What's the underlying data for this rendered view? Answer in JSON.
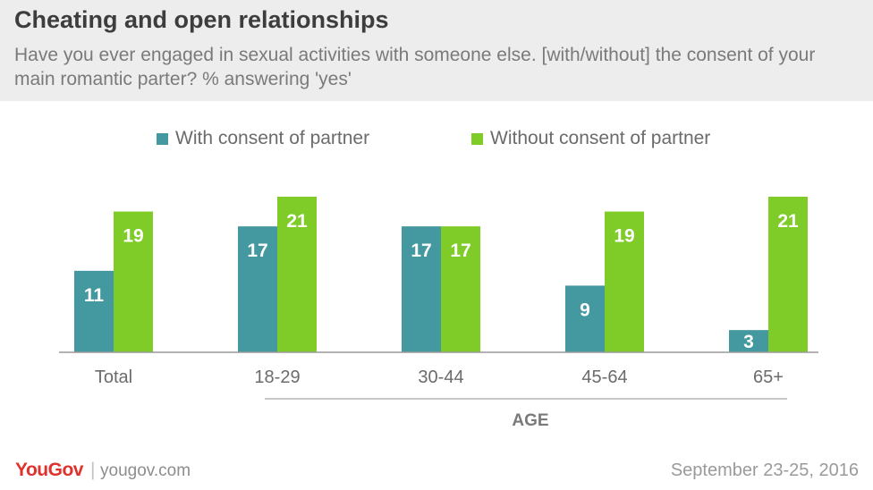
{
  "header": {
    "title": "Cheating and open relationships",
    "subtitle": "Have you ever engaged in sexual activities with someone else. [with/without] the consent of your main romantic parter? % answering 'yes'"
  },
  "colors": {
    "with": "#43999f",
    "without": "#7fcc28",
    "axis": "#9a9a9a",
    "text": "#6b6b6b"
  },
  "chart_data": {
    "type": "bar",
    "categories": [
      "Total",
      "18-29",
      "30-44",
      "45-64",
      "65+"
    ],
    "series": [
      {
        "name": "With consent of partner",
        "values": [
          11,
          17,
          17,
          9,
          3
        ]
      },
      {
        "name": "Without consent of partner",
        "values": [
          19,
          21,
          17,
          19,
          21
        ]
      }
    ],
    "group_label": "AGE",
    "ylim": [
      0,
      21
    ],
    "grid": false,
    "legend_position": "top-center"
  },
  "footer": {
    "brand": "YouGov",
    "separator": "|",
    "url": "yougov.com",
    "date": "September 23-25, 2016"
  }
}
